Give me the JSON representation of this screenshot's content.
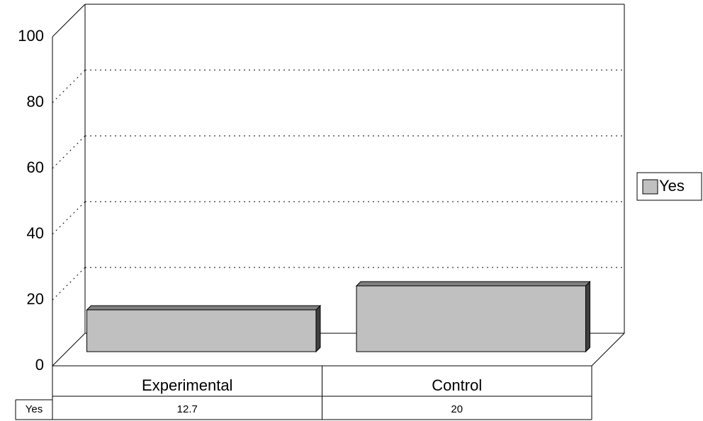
{
  "chart_data": {
    "type": "bar",
    "categories": [
      "Experimental",
      "Control"
    ],
    "series": [
      {
        "name": "Yes",
        "color": "#c0c0c0",
        "values": [
          12.7,
          20
        ]
      }
    ],
    "ylim": [
      0,
      100
    ],
    "yticks": [
      0,
      20,
      40,
      60,
      80,
      100
    ],
    "grid": true,
    "legend": "right"
  }
}
